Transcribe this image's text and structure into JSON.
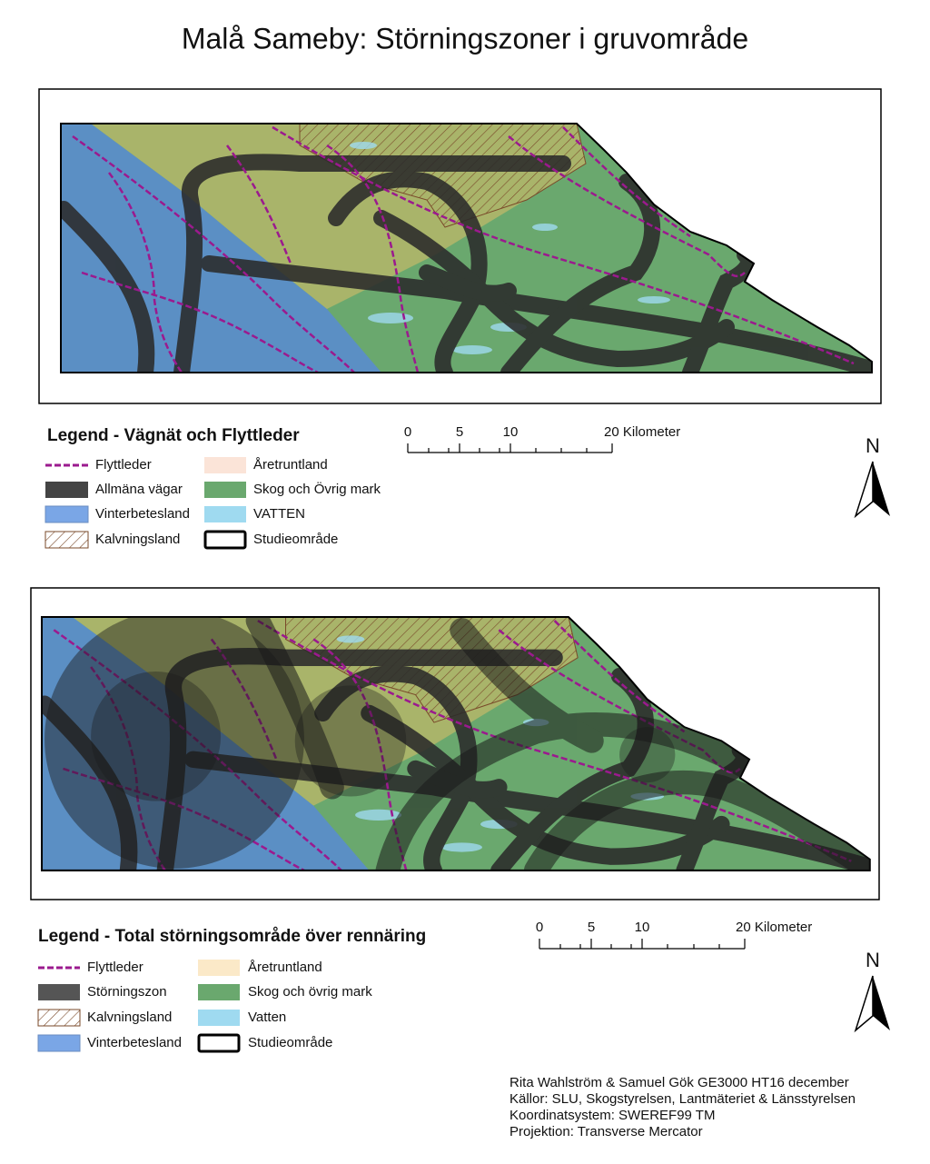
{
  "title": "Malå Sameby: Störningszoner i gruvområde",
  "maps": [
    {
      "legend": {
        "title": "Legend - Vägnät och Flyttleder",
        "items": [
          "Flyttleder",
          "Allmäna vägar",
          "Vinterbetesland",
          "Kalvningsland",
          "Åretruntland",
          "Skog och Övrig mark",
          "VATTEN",
          "Studieområde"
        ]
      },
      "scale": [
        "0",
        "5",
        "10",
        "20 Kilometer"
      ],
      "north": "N"
    },
    {
      "legend": {
        "title": "Legend - Total störningsområde över rennäring",
        "items": [
          "Flyttleder",
          "Störningszon",
          "Kalvningsland",
          "Vinterbetesland",
          "Åretruntland",
          "Skog och övrig mark",
          "Vatten",
          "Studieområde"
        ]
      },
      "scale": [
        "0",
        "5",
        "10",
        "20 Kilometer"
      ],
      "north": "N"
    }
  ],
  "credits": [
    "Rita Wahlström & Samuel Gök GE3000 HT16 december",
    "Källor: SLU, Skogstyrelsen, Lantmäteriet & Länsstyrelsen",
    "Koordinatsystem: SWEREF99 TM",
    "Projektion: Transverse Mercator"
  ]
}
